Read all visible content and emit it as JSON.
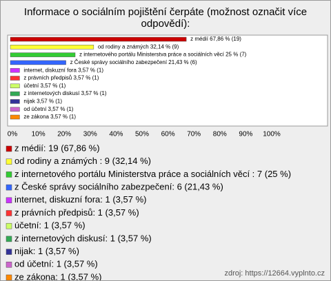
{
  "chart_data": {
    "type": "bar",
    "orientation": "horizontal",
    "title": "Informace o sociálním pojištění čerpáte (možnost označit více odpovědí):",
    "values": [
      67.86,
      32.14,
      25,
      21.43,
      3.57,
      3.57,
      3.57,
      3.57,
      3.57,
      3.57,
      3.57
    ],
    "value_labels": [
      "z médií 67,86 % (19)",
      "od rodiny a známých  32,14 % (9)",
      "z internetového portálu Ministerstva práce a sociálních věcí  25 % (7)",
      "z České správy sociálního zabezpečení 21,43 % (6)",
      "internet, diskuzní fora 3,57 % (1)",
      "z právních předpisů 3,57 % (1)",
      "účetní 3,57 % (1)",
      "z internetových diskusí 3,57 % (1)",
      "nijak 3,57 % (1)",
      "od účetní 3,57 % (1)",
      "ze zákona 3,57 % (1)"
    ],
    "colors": [
      "#cc0000",
      "#ffff33",
      "#33cc33",
      "#3366ff",
      "#cc33ff",
      "#ff3333",
      "#ccff66",
      "#33aa55",
      "#333399",
      "#cc66cc",
      "#ff8800"
    ],
    "legend": [
      "z médií: 19 (67,86 %)",
      "od rodiny a známých : 9 (32,14 %)",
      "z internetového portálu Ministerstva práce a sociálních věcí : 7 (25 %)",
      "z České správy sociálního zabezpečení: 6 (21,43 %)",
      "internet, diskuzní fora: 1 (3,57 %)",
      "z právních předpisů: 1 (3,57 %)",
      "účetní: 1 (3,57 %)",
      "z internetových diskusí: 1 (3,57 %)",
      "nijak: 1 (3,57 %)",
      "od účetní: 1 (3,57 %)",
      "ze zákona: 1 (3,57 %)"
    ],
    "xlim": [
      0,
      100
    ],
    "xticks": [
      {
        "value": 0,
        "label": "0%"
      },
      {
        "value": 10,
        "label": "10%"
      },
      {
        "value": 20,
        "label": "20%"
      },
      {
        "value": 30,
        "label": "30%"
      },
      {
        "value": 40,
        "label": "40%"
      },
      {
        "value": 50,
        "label": "50%"
      },
      {
        "value": 60,
        "label": "60%"
      },
      {
        "value": 70,
        "label": "70%"
      },
      {
        "value": 80,
        "label": "80%"
      },
      {
        "value": 90,
        "label": "90%"
      },
      {
        "value": 100,
        "label": "100%"
      }
    ],
    "grid": false,
    "source": "zdroj: https://12664.vyplnto.cz"
  }
}
